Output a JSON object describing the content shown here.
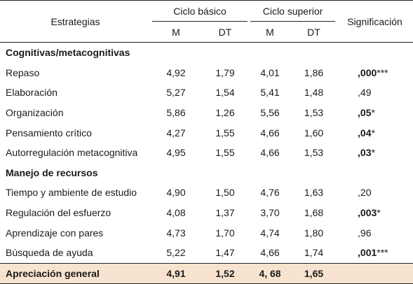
{
  "header": {
    "estrategias": "Estrategias",
    "ciclo_basico": "Ciclo básico",
    "ciclo_superior": "Ciclo superior",
    "significacion": "Significación",
    "m": "M",
    "dt": "DT"
  },
  "sections": [
    {
      "title": "Cognitivas/metacognitivas",
      "rows": [
        {
          "label": "Repaso",
          "m1": "4,92",
          "dt1": "1,79",
          "m2": "4,01",
          "dt2": "1,86",
          "sig": ",000",
          "stars": "***",
          "bold": true
        },
        {
          "label": "Elaboración",
          "m1": "5,27",
          "dt1": "1,54",
          "m2": "5,41",
          "dt2": "1,48",
          "sig": ",49",
          "stars": "",
          "bold": false
        },
        {
          "label": "Organización",
          "m1": "5,86",
          "dt1": "1,26",
          "m2": "5,56",
          "dt2": "1,53",
          "sig": ",05",
          "stars": "*",
          "bold": true
        },
        {
          "label": "Pensamiento crítico",
          "m1": "4,27",
          "dt1": "1,55",
          "m2": "4,66",
          "dt2": "1,60",
          "sig": ",04",
          "stars": "*",
          "bold": true
        },
        {
          "label": "Autorregulación metacognitiva",
          "m1": "4,95",
          "dt1": "1,55",
          "m2": "4,66",
          "dt2": "1,53",
          "sig": ",03",
          "stars": "*",
          "bold": true
        }
      ]
    },
    {
      "title": "Manejo de recursos",
      "rows": [
        {
          "label": "Tiempo y ambiente de estudio",
          "m1": "4,90",
          "dt1": "1,50",
          "m2": "4,76",
          "dt2": "1,63",
          "sig": ",20",
          "stars": "",
          "bold": false
        },
        {
          "label": "Regulación del esfuerzo",
          "m1": "4,08",
          "dt1": "1,37",
          "m2": "3,70",
          "dt2": "1,68",
          "sig": ",003",
          "stars": "*",
          "bold": true
        },
        {
          "label": "Aprendizaje con pares",
          "m1": "4,73",
          "dt1": "1,70",
          "m2": "4,74",
          "dt2": "1,80",
          "sig": ",96",
          "stars": "",
          "bold": false
        },
        {
          "label": "Búsqueda de ayuda",
          "m1": "5,22",
          "dt1": "1,47",
          "m2": "4,66",
          "dt2": "1,74",
          "sig": ",001",
          "stars": "***",
          "bold": true
        }
      ]
    }
  ],
  "total": {
    "label": "Apreciación general",
    "m1": "4,91",
    "dt1": "1,52",
    "m2": "4, 68",
    "dt2": "1,65",
    "sig": ""
  }
}
